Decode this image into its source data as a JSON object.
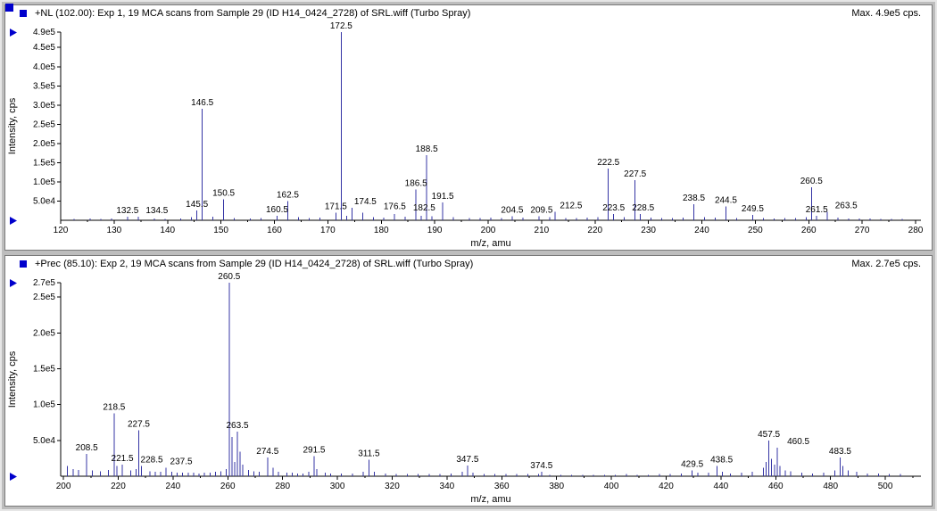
{
  "colors": {
    "accent": "#0000cc",
    "peak": "#3434a4",
    "axis": "#000000",
    "pane_bg": "#ffffff",
    "frame_bg": "#bdbdbd"
  },
  "chart_data": [
    {
      "type": "bar",
      "title": "+NL (102.00): Exp 1, 19 MCA scans from Sample 29 (ID H14_0424_2728) of SRL.wiff (Turbo Spray)",
      "max_label": "Max. 4.9e5 cps.",
      "xlabel": "m/z, amu",
      "ylabel": "Intensity, cps",
      "xlim": [
        120,
        281
      ],
      "ylim": [
        0,
        490000
      ],
      "xticks": [
        120,
        130,
        140,
        150,
        160,
        170,
        180,
        190,
        200,
        210,
        220,
        230,
        240,
        250,
        260,
        270,
        280
      ],
      "yticks": [
        {
          "v": 50000,
          "t": "5.0e4"
        },
        {
          "v": 100000,
          "t": "1.0e5"
        },
        {
          "v": 150000,
          "t": "1.5e5"
        },
        {
          "v": 200000,
          "t": "2.0e5"
        },
        {
          "v": 250000,
          "t": "2.5e5"
        },
        {
          "v": 300000,
          "t": "3.0e5"
        },
        {
          "v": 350000,
          "t": "3.5e5"
        },
        {
          "v": 400000,
          "t": "4.0e5"
        },
        {
          "v": 450000,
          "t": "4.5e5"
        },
        {
          "v": 490000,
          "t": "4.9e5"
        }
      ],
      "peaks": [
        {
          "mz": 132.5,
          "intensity": 9000,
          "label": "132.5"
        },
        {
          "mz": 134.5,
          "intensity": 9000,
          "label": "134.5"
        },
        {
          "mz": 145.5,
          "intensity": 26000,
          "label": "145.5"
        },
        {
          "mz": 146.5,
          "intensity": 290000,
          "label": "146.5"
        },
        {
          "mz": 150.5,
          "intensity": 55000,
          "label": "150.5"
        },
        {
          "mz": 160.5,
          "intensity": 12000,
          "label": "160.5"
        },
        {
          "mz": 162.5,
          "intensity": 50000,
          "label": "162.5"
        },
        {
          "mz": 171.5,
          "intensity": 20000,
          "label": "171.5"
        },
        {
          "mz": 172.5,
          "intensity": 490000,
          "label": "172.5"
        },
        {
          "mz": 174.5,
          "intensity": 32000,
          "label": "174.5"
        },
        {
          "mz": 176.5,
          "intensity": 20000,
          "label": "176.5"
        },
        {
          "mz": 182.5,
          "intensity": 16000,
          "label": "182.5"
        },
        {
          "mz": 186.5,
          "intensity": 80000,
          "label": "186.5"
        },
        {
          "mz": 188.5,
          "intensity": 170000,
          "label": "188.5"
        },
        {
          "mz": 191.5,
          "intensity": 46000,
          "label": "191.5"
        },
        {
          "mz": 204.5,
          "intensity": 11000,
          "label": "204.5"
        },
        {
          "mz": 209.5,
          "intensity": 11000,
          "label": "209.5"
        },
        {
          "mz": 212.5,
          "intensity": 22000,
          "label": "212.5"
        },
        {
          "mz": 222.5,
          "intensity": 135000,
          "label": "222.5"
        },
        {
          "mz": 223.5,
          "intensity": 16000,
          "label": "223.5"
        },
        {
          "mz": 227.5,
          "intensity": 105000,
          "label": "227.5"
        },
        {
          "mz": 228.5,
          "intensity": 16000,
          "label": "228.5"
        },
        {
          "mz": 238.5,
          "intensity": 42000,
          "label": "238.5"
        },
        {
          "mz": 244.5,
          "intensity": 36000,
          "label": "244.5"
        },
        {
          "mz": 249.5,
          "intensity": 14000,
          "label": "249.5"
        },
        {
          "mz": 260.5,
          "intensity": 86000,
          "label": "260.5"
        },
        {
          "mz": 261.5,
          "intensity": 12000,
          "label": "261.5"
        },
        {
          "mz": 263.5,
          "intensity": 22000,
          "label": "263.5"
        }
      ],
      "minor_peaks": [
        [
          122.5,
          4000
        ],
        [
          125.5,
          5000
        ],
        [
          127.5,
          4000
        ],
        [
          129.5,
          5000
        ],
        [
          137.5,
          5000
        ],
        [
          139.5,
          4000
        ],
        [
          142.5,
          5000
        ],
        [
          144.5,
          8000
        ],
        [
          148.5,
          9000
        ],
        [
          152.5,
          6000
        ],
        [
          155.5,
          5000
        ],
        [
          157.5,
          6000
        ],
        [
          164.5,
          8000
        ],
        [
          166.5,
          6000
        ],
        [
          168.5,
          7000
        ],
        [
          173.5,
          12000
        ],
        [
          178.5,
          8000
        ],
        [
          180.5,
          7000
        ],
        [
          184.5,
          9000
        ],
        [
          187.5,
          12000
        ],
        [
          189.5,
          10000
        ],
        [
          193.5,
          8000
        ],
        [
          196.5,
          6000
        ],
        [
          198.5,
          6000
        ],
        [
          200.5,
          7000
        ],
        [
          202.5,
          6000
        ],
        [
          206.5,
          7000
        ],
        [
          211.5,
          8000
        ],
        [
          214.5,
          6000
        ],
        [
          216.5,
          6000
        ],
        [
          218.5,
          7000
        ],
        [
          220.5,
          8000
        ],
        [
          225.5,
          8000
        ],
        [
          230.5,
          7000
        ],
        [
          232.5,
          6000
        ],
        [
          234.5,
          6000
        ],
        [
          236.5,
          7000
        ],
        [
          240.5,
          8000
        ],
        [
          242.5,
          7000
        ],
        [
          246.5,
          6000
        ],
        [
          251.5,
          6000
        ],
        [
          253.5,
          5000
        ],
        [
          255.5,
          6000
        ],
        [
          257.5,
          6000
        ],
        [
          259.5,
          8000
        ],
        [
          265.5,
          7000
        ],
        [
          267.5,
          5000
        ],
        [
          269.5,
          5000
        ],
        [
          271.5,
          5000
        ],
        [
          273.5,
          4000
        ],
        [
          275.5,
          4000
        ],
        [
          277.5,
          4000
        ]
      ]
    },
    {
      "type": "bar",
      "title": "+Prec (85.10): Exp 2, 19 MCA scans from Sample 29 (ID H14_0424_2728) of SRL.wiff (Turbo Spray)",
      "max_label": "Max. 2.7e5 cps.",
      "xlabel": "m/z, amu",
      "ylabel": "Intensity, cps",
      "xlim": [
        199,
        513
      ],
      "ylim": [
        0,
        270000
      ],
      "xticks": [
        200,
        220,
        240,
        260,
        280,
        300,
        320,
        340,
        360,
        380,
        400,
        420,
        440,
        460,
        480,
        500
      ],
      "yticks": [
        {
          "v": 50000,
          "t": "5.0e4"
        },
        {
          "v": 100000,
          "t": "1.0e5"
        },
        {
          "v": 150000,
          "t": "1.5e5"
        },
        {
          "v": 200000,
          "t": "2.0e5"
        },
        {
          "v": 250000,
          "t": "2.5e5"
        },
        {
          "v": 270000,
          "t": "2.7e5"
        }
      ],
      "peaks": [
        {
          "mz": 208.5,
          "intensity": 31000,
          "label": "208.5"
        },
        {
          "mz": 218.5,
          "intensity": 88000,
          "label": "218.5"
        },
        {
          "mz": 221.5,
          "intensity": 16000,
          "label": "221.5"
        },
        {
          "mz": 227.5,
          "intensity": 64000,
          "label": "227.5"
        },
        {
          "mz": 228.5,
          "intensity": 14000,
          "label": "228.5"
        },
        {
          "mz": 237.5,
          "intensity": 12000,
          "label": "237.5"
        },
        {
          "mz": 260.5,
          "intensity": 270000,
          "label": "260.5"
        },
        {
          "mz": 263.5,
          "intensity": 62000,
          "label": "263.5"
        },
        {
          "mz": 274.5,
          "intensity": 26000,
          "label": "274.5"
        },
        {
          "mz": 291.5,
          "intensity": 28000,
          "label": "291.5"
        },
        {
          "mz": 311.5,
          "intensity": 23000,
          "label": "311.5"
        },
        {
          "mz": 347.5,
          "intensity": 15000,
          "label": "347.5"
        },
        {
          "mz": 374.5,
          "intensity": 6000,
          "label": "374.5"
        },
        {
          "mz": 429.5,
          "intensity": 8000,
          "label": "429.5"
        },
        {
          "mz": 438.5,
          "intensity": 14000,
          "label": "438.5"
        },
        {
          "mz": 457.5,
          "intensity": 50000,
          "label": "457.5"
        },
        {
          "mz": 460.5,
          "intensity": 40000,
          "label": "460.5"
        },
        {
          "mz": 483.5,
          "intensity": 26000,
          "label": "483.5"
        }
      ],
      "minor_peaks": [
        [
          201.5,
          14000
        ],
        [
          203.5,
          10000
        ],
        [
          205.5,
          9000
        ],
        [
          210.5,
          8000
        ],
        [
          213.5,
          7000
        ],
        [
          216.5,
          9000
        ],
        [
          219.5,
          14000
        ],
        [
          224.5,
          8000
        ],
        [
          226.5,
          10000
        ],
        [
          231.5,
          7000
        ],
        [
          233.5,
          6000
        ],
        [
          235.5,
          6000
        ],
        [
          239.5,
          6000
        ],
        [
          241.5,
          5000
        ],
        [
          243.5,
          5000
        ],
        [
          245.5,
          5000
        ],
        [
          247.5,
          5000
        ],
        [
          249.5,
          4000
        ],
        [
          251.5,
          5000
        ],
        [
          253.5,
          5000
        ],
        [
          255.5,
          6000
        ],
        [
          257.5,
          7000
        ],
        [
          259.5,
          10000
        ],
        [
          261.5,
          55000
        ],
        [
          262.5,
          20000
        ],
        [
          264.5,
          34000
        ],
        [
          265.5,
          16000
        ],
        [
          267.5,
          9000
        ],
        [
          269.5,
          7000
        ],
        [
          271.5,
          6000
        ],
        [
          276.5,
          12000
        ],
        [
          278.5,
          6000
        ],
        [
          281.5,
          5000
        ],
        [
          283.5,
          5000
        ],
        [
          285.5,
          4000
        ],
        [
          287.5,
          4000
        ],
        [
          289.5,
          6000
        ],
        [
          292.5,
          10000
        ],
        [
          295.5,
          5000
        ],
        [
          297.5,
          4000
        ],
        [
          301.5,
          4000
        ],
        [
          305.5,
          4000
        ],
        [
          309.5,
          6000
        ],
        [
          313.5,
          6000
        ],
        [
          317.5,
          4000
        ],
        [
          321.5,
          3000
        ],
        [
          325.5,
          3000
        ],
        [
          329.5,
          3000
        ],
        [
          333.5,
          3000
        ],
        [
          337.5,
          3000
        ],
        [
          341.5,
          4000
        ],
        [
          345.5,
          6000
        ],
        [
          349.5,
          5000
        ],
        [
          353.5,
          3000
        ],
        [
          357.5,
          3000
        ],
        [
          361.5,
          3000
        ],
        [
          365.5,
          3000
        ],
        [
          369.5,
          3000
        ],
        [
          373.5,
          3000
        ],
        [
          377.5,
          2000
        ],
        [
          381.5,
          2000
        ],
        [
          385.5,
          2000
        ],
        [
          389.5,
          2000
        ],
        [
          393.5,
          2000
        ],
        [
          397.5,
          2000
        ],
        [
          401.5,
          2000
        ],
        [
          405.5,
          3000
        ],
        [
          409.5,
          2000
        ],
        [
          413.5,
          2000
        ],
        [
          417.5,
          3000
        ],
        [
          421.5,
          3000
        ],
        [
          425.5,
          4000
        ],
        [
          431.5,
          5000
        ],
        [
          435.5,
          5000
        ],
        [
          440.5,
          6000
        ],
        [
          443.5,
          4000
        ],
        [
          447.5,
          5000
        ],
        [
          451.5,
          6000
        ],
        [
          455.5,
          12000
        ],
        [
          456.5,
          20000
        ],
        [
          458.5,
          24000
        ],
        [
          459.5,
          16000
        ],
        [
          461.5,
          14000
        ],
        [
          463.5,
          8000
        ],
        [
          465.5,
          7000
        ],
        [
          469.5,
          5000
        ],
        [
          473.5,
          4000
        ],
        [
          477.5,
          5000
        ],
        [
          481.5,
          8000
        ],
        [
          484.5,
          14000
        ],
        [
          486.5,
          8000
        ],
        [
          489.5,
          6000
        ],
        [
          493.5,
          4000
        ],
        [
          497.5,
          4000
        ],
        [
          501.5,
          3000
        ],
        [
          505.5,
          3000
        ]
      ]
    }
  ]
}
